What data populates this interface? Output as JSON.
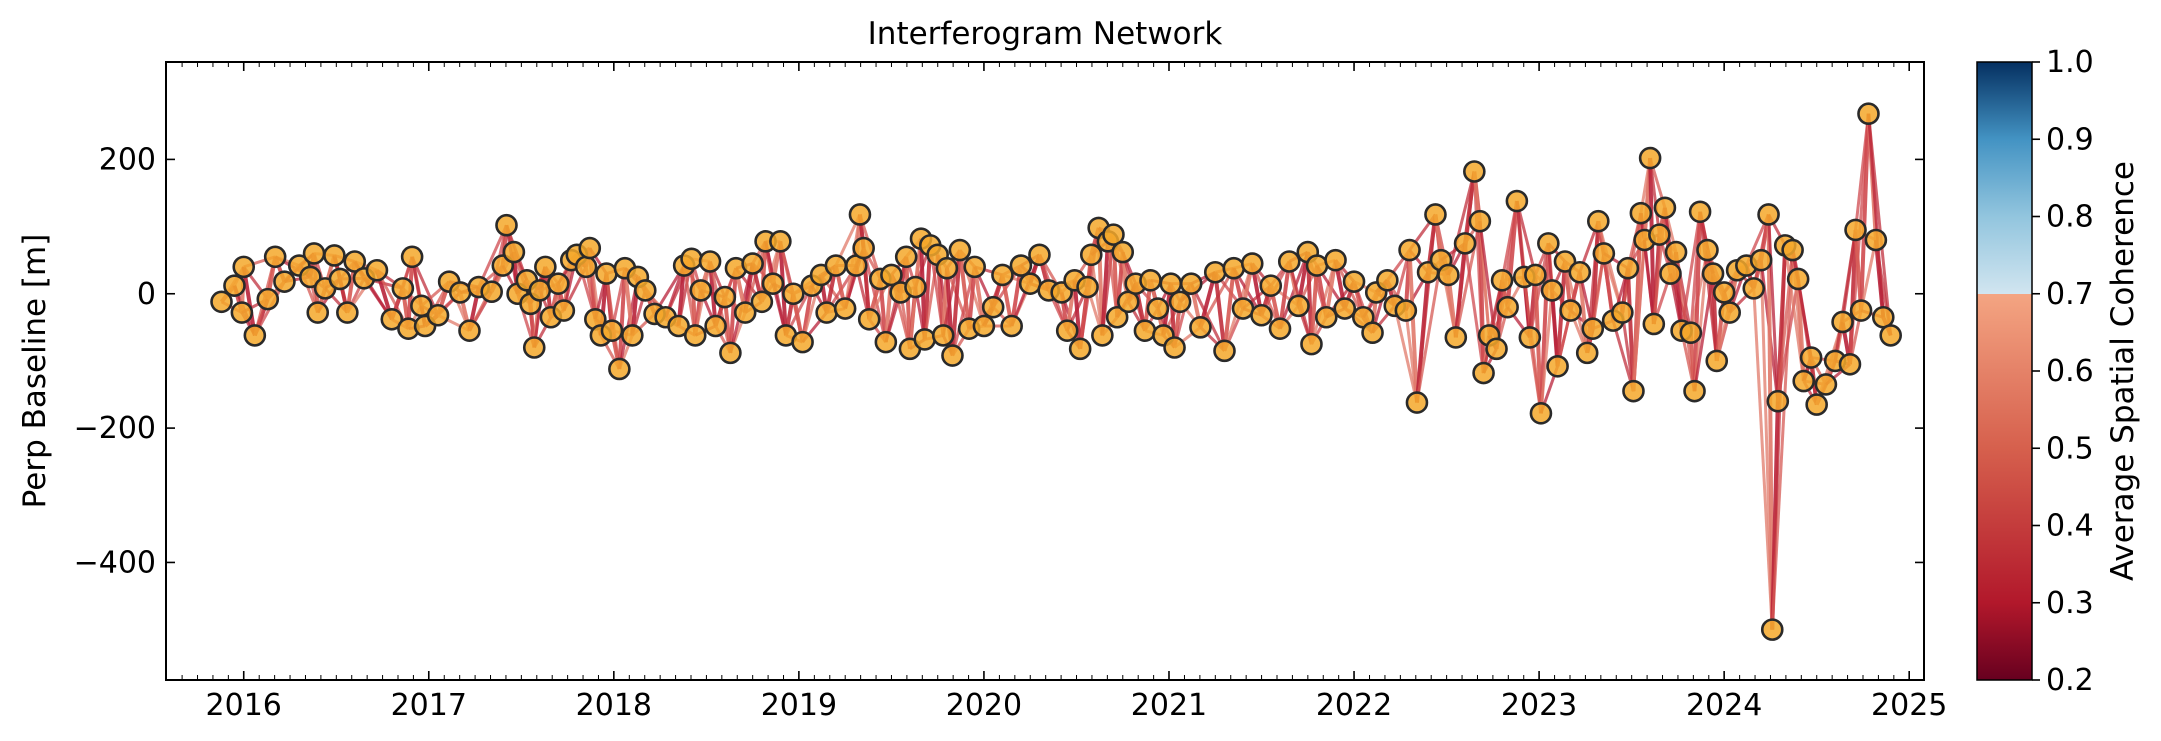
{
  "chart_data": {
    "type": "scatter",
    "title": "Interferogram Network",
    "ylabel": "Perp Baseline [m]",
    "xlabel": "",
    "xlim": [
      2015.58,
      2025.08
    ],
    "ylim": [
      -575,
      345
    ],
    "xticks": [
      2016,
      2017,
      2018,
      2019,
      2020,
      2021,
      2022,
      2023,
      2024,
      2025
    ],
    "xtick_labels": [
      "2016",
      "2017",
      "2018",
      "2019",
      "2020",
      "2021",
      "2022",
      "2023",
      "2024",
      "2025"
    ],
    "yticks": [
      200,
      0,
      -200,
      -400
    ],
    "ytick_labels": [
      "200",
      "0",
      "−200",
      "−400"
    ],
    "grid": false,
    "marker_color": "#f5a82a",
    "colorbar": {
      "label": "Average Spatial Coherence",
      "range": [
        0.2,
        1.0
      ],
      "ticks": [
        "0.2",
        "0.3",
        "0.4",
        "0.5",
        "0.6",
        "0.7",
        "0.8",
        "0.9",
        "1.0"
      ],
      "colormap": "RdBu",
      "used_range": [
        0.2,
        0.7
      ]
    },
    "acquisitions": [
      {
        "date": 2015.88,
        "bperp": -12
      },
      {
        "date": 2015.95,
        "bperp": 12
      },
      {
        "date": 2015.99,
        "bperp": -28
      },
      {
        "date": 2016.0,
        "bperp": 40
      },
      {
        "date": 2016.06,
        "bperp": -62
      },
      {
        "date": 2016.13,
        "bperp": -8
      },
      {
        "date": 2016.17,
        "bperp": 55
      },
      {
        "date": 2016.22,
        "bperp": 18
      },
      {
        "date": 2016.3,
        "bperp": 42
      },
      {
        "date": 2016.36,
        "bperp": 25
      },
      {
        "date": 2016.38,
        "bperp": 60
      },
      {
        "date": 2016.4,
        "bperp": -28
      },
      {
        "date": 2016.44,
        "bperp": 8
      },
      {
        "date": 2016.49,
        "bperp": 57
      },
      {
        "date": 2016.52,
        "bperp": 22
      },
      {
        "date": 2016.56,
        "bperp": -28
      },
      {
        "date": 2016.6,
        "bperp": 48
      },
      {
        "date": 2016.65,
        "bperp": 23
      },
      {
        "date": 2016.72,
        "bperp": 35
      },
      {
        "date": 2016.8,
        "bperp": -38
      },
      {
        "date": 2016.86,
        "bperp": 8
      },
      {
        "date": 2016.89,
        "bperp": -52
      },
      {
        "date": 2016.91,
        "bperp": 55
      },
      {
        "date": 2016.96,
        "bperp": -18
      },
      {
        "date": 2016.98,
        "bperp": -48
      },
      {
        "date": 2017.05,
        "bperp": -32
      },
      {
        "date": 2017.11,
        "bperp": 18
      },
      {
        "date": 2017.17,
        "bperp": 2
      },
      {
        "date": 2017.22,
        "bperp": -55
      },
      {
        "date": 2017.27,
        "bperp": 10
      },
      {
        "date": 2017.34,
        "bperp": 3
      },
      {
        "date": 2017.4,
        "bperp": 42
      },
      {
        "date": 2017.42,
        "bperp": 102
      },
      {
        "date": 2017.46,
        "bperp": 62
      },
      {
        "date": 2017.48,
        "bperp": 0
      },
      {
        "date": 2017.53,
        "bperp": 20
      },
      {
        "date": 2017.55,
        "bperp": -15
      },
      {
        "date": 2017.57,
        "bperp": -80
      },
      {
        "date": 2017.6,
        "bperp": 5
      },
      {
        "date": 2017.63,
        "bperp": 40
      },
      {
        "date": 2017.66,
        "bperp": -35
      },
      {
        "date": 2017.7,
        "bperp": 15
      },
      {
        "date": 2017.73,
        "bperp": -25
      },
      {
        "date": 2017.77,
        "bperp": 50
      },
      {
        "date": 2017.8,
        "bperp": 58
      },
      {
        "date": 2017.85,
        "bperp": 40
      },
      {
        "date": 2017.87,
        "bperp": 68
      },
      {
        "date": 2017.9,
        "bperp": -38
      },
      {
        "date": 2017.93,
        "bperp": -62
      },
      {
        "date": 2017.96,
        "bperp": 30
      },
      {
        "date": 2017.99,
        "bperp": -55
      },
      {
        "date": 2018.03,
        "bperp": -112
      },
      {
        "date": 2018.06,
        "bperp": 38
      },
      {
        "date": 2018.1,
        "bperp": -62
      },
      {
        "date": 2018.13,
        "bperp": 25
      },
      {
        "date": 2018.17,
        "bperp": 5
      },
      {
        "date": 2018.22,
        "bperp": -30
      },
      {
        "date": 2018.28,
        "bperp": -35
      },
      {
        "date": 2018.35,
        "bperp": -48
      },
      {
        "date": 2018.38,
        "bperp": 42
      },
      {
        "date": 2018.42,
        "bperp": 52
      },
      {
        "date": 2018.44,
        "bperp": -62
      },
      {
        "date": 2018.47,
        "bperp": 5
      },
      {
        "date": 2018.52,
        "bperp": 48
      },
      {
        "date": 2018.55,
        "bperp": -48
      },
      {
        "date": 2018.6,
        "bperp": -5
      },
      {
        "date": 2018.63,
        "bperp": -88
      },
      {
        "date": 2018.66,
        "bperp": 38
      },
      {
        "date": 2018.71,
        "bperp": -28
      },
      {
        "date": 2018.75,
        "bperp": 45
      },
      {
        "date": 2018.8,
        "bperp": -12
      },
      {
        "date": 2018.82,
        "bperp": 78
      },
      {
        "date": 2018.86,
        "bperp": 15
      },
      {
        "date": 2018.9,
        "bperp": 78
      },
      {
        "date": 2018.93,
        "bperp": -62
      },
      {
        "date": 2018.97,
        "bperp": 0
      },
      {
        "date": 2019.02,
        "bperp": -72
      },
      {
        "date": 2019.07,
        "bperp": 12
      },
      {
        "date": 2019.12,
        "bperp": 28
      },
      {
        "date": 2019.15,
        "bperp": -28
      },
      {
        "date": 2019.2,
        "bperp": 42
      },
      {
        "date": 2019.25,
        "bperp": -22
      },
      {
        "date": 2019.31,
        "bperp": 42
      },
      {
        "date": 2019.33,
        "bperp": 118
      },
      {
        "date": 2019.35,
        "bperp": 68
      },
      {
        "date": 2019.38,
        "bperp": -38
      },
      {
        "date": 2019.44,
        "bperp": 22
      },
      {
        "date": 2019.47,
        "bperp": -72
      },
      {
        "date": 2019.5,
        "bperp": 28
      },
      {
        "date": 2019.55,
        "bperp": 2
      },
      {
        "date": 2019.58,
        "bperp": 55
      },
      {
        "date": 2019.6,
        "bperp": -82
      },
      {
        "date": 2019.63,
        "bperp": 10
      },
      {
        "date": 2019.66,
        "bperp": 82
      },
      {
        "date": 2019.68,
        "bperp": -68
      },
      {
        "date": 2019.71,
        "bperp": 72
      },
      {
        "date": 2019.75,
        "bperp": 58
      },
      {
        "date": 2019.78,
        "bperp": -62
      },
      {
        "date": 2019.8,
        "bperp": 38
      },
      {
        "date": 2019.83,
        "bperp": -92
      },
      {
        "date": 2019.87,
        "bperp": 65
      },
      {
        "date": 2019.92,
        "bperp": -52
      },
      {
        "date": 2019.95,
        "bperp": 40
      },
      {
        "date": 2020.0,
        "bperp": -48
      },
      {
        "date": 2020.05,
        "bperp": -20
      },
      {
        "date": 2020.1,
        "bperp": 28
      },
      {
        "date": 2020.15,
        "bperp": -48
      },
      {
        "date": 2020.2,
        "bperp": 42
      },
      {
        "date": 2020.25,
        "bperp": 15
      },
      {
        "date": 2020.3,
        "bperp": 58
      },
      {
        "date": 2020.35,
        "bperp": 5
      },
      {
        "date": 2020.42,
        "bperp": 2
      },
      {
        "date": 2020.45,
        "bperp": -55
      },
      {
        "date": 2020.49,
        "bperp": 20
      },
      {
        "date": 2020.52,
        "bperp": -82
      },
      {
        "date": 2020.56,
        "bperp": 10
      },
      {
        "date": 2020.58,
        "bperp": 58
      },
      {
        "date": 2020.62,
        "bperp": 98
      },
      {
        "date": 2020.64,
        "bperp": -62
      },
      {
        "date": 2020.67,
        "bperp": 78
      },
      {
        "date": 2020.7,
        "bperp": 88
      },
      {
        "date": 2020.72,
        "bperp": -35
      },
      {
        "date": 2020.75,
        "bperp": 62
      },
      {
        "date": 2020.78,
        "bperp": -12
      },
      {
        "date": 2020.82,
        "bperp": 15
      },
      {
        "date": 2020.87,
        "bperp": -55
      },
      {
        "date": 2020.9,
        "bperp": 20
      },
      {
        "date": 2020.94,
        "bperp": -22
      },
      {
        "date": 2020.97,
        "bperp": -62
      },
      {
        "date": 2021.01,
        "bperp": 15
      },
      {
        "date": 2021.03,
        "bperp": -80
      },
      {
        "date": 2021.06,
        "bperp": -12
      },
      {
        "date": 2021.12,
        "bperp": 15
      },
      {
        "date": 2021.17,
        "bperp": -50
      },
      {
        "date": 2021.25,
        "bperp": 32
      },
      {
        "date": 2021.3,
        "bperp": -85
      },
      {
        "date": 2021.35,
        "bperp": 38
      },
      {
        "date": 2021.4,
        "bperp": -22
      },
      {
        "date": 2021.45,
        "bperp": 45
      },
      {
        "date": 2021.5,
        "bperp": -32
      },
      {
        "date": 2021.55,
        "bperp": 12
      },
      {
        "date": 2021.6,
        "bperp": -52
      },
      {
        "date": 2021.65,
        "bperp": 48
      },
      {
        "date": 2021.7,
        "bperp": -18
      },
      {
        "date": 2021.75,
        "bperp": 62
      },
      {
        "date": 2021.77,
        "bperp": -75
      },
      {
        "date": 2021.8,
        "bperp": 42
      },
      {
        "date": 2021.85,
        "bperp": -35
      },
      {
        "date": 2021.9,
        "bperp": 50
      },
      {
        "date": 2021.95,
        "bperp": -22
      },
      {
        "date": 2022.0,
        "bperp": 18
      },
      {
        "date": 2022.05,
        "bperp": -35
      },
      {
        "date": 2022.1,
        "bperp": -58
      },
      {
        "date": 2022.12,
        "bperp": 2
      },
      {
        "date": 2022.18,
        "bperp": 20
      },
      {
        "date": 2022.22,
        "bperp": -18
      },
      {
        "date": 2022.28,
        "bperp": -25
      },
      {
        "date": 2022.3,
        "bperp": 65
      },
      {
        "date": 2022.34,
        "bperp": -162
      },
      {
        "date": 2022.4,
        "bperp": 32
      },
      {
        "date": 2022.44,
        "bperp": 118
      },
      {
        "date": 2022.47,
        "bperp": 50
      },
      {
        "date": 2022.51,
        "bperp": 28
      },
      {
        "date": 2022.55,
        "bperp": -65
      },
      {
        "date": 2022.6,
        "bperp": 75
      },
      {
        "date": 2022.65,
        "bperp": 182
      },
      {
        "date": 2022.68,
        "bperp": 108
      },
      {
        "date": 2022.7,
        "bperp": -118
      },
      {
        "date": 2022.73,
        "bperp": -62
      },
      {
        "date": 2022.77,
        "bperp": -82
      },
      {
        "date": 2022.8,
        "bperp": 20
      },
      {
        "date": 2022.83,
        "bperp": -20
      },
      {
        "date": 2022.88,
        "bperp": 138
      },
      {
        "date": 2022.92,
        "bperp": 25
      },
      {
        "date": 2022.95,
        "bperp": -65
      },
      {
        "date": 2022.98,
        "bperp": 28
      },
      {
        "date": 2023.01,
        "bperp": -178
      },
      {
        "date": 2023.05,
        "bperp": 75
      },
      {
        "date": 2023.07,
        "bperp": 5
      },
      {
        "date": 2023.1,
        "bperp": -108
      },
      {
        "date": 2023.14,
        "bperp": 48
      },
      {
        "date": 2023.17,
        "bperp": -25
      },
      {
        "date": 2023.22,
        "bperp": 32
      },
      {
        "date": 2023.26,
        "bperp": -88
      },
      {
        "date": 2023.29,
        "bperp": -52
      },
      {
        "date": 2023.32,
        "bperp": 108
      },
      {
        "date": 2023.35,
        "bperp": 60
      },
      {
        "date": 2023.4,
        "bperp": -40
      },
      {
        "date": 2023.45,
        "bperp": -28
      },
      {
        "date": 2023.48,
        "bperp": 38
      },
      {
        "date": 2023.51,
        "bperp": -145
      },
      {
        "date": 2023.55,
        "bperp": 120
      },
      {
        "date": 2023.57,
        "bperp": 80
      },
      {
        "date": 2023.6,
        "bperp": 202
      },
      {
        "date": 2023.62,
        "bperp": -45
      },
      {
        "date": 2023.65,
        "bperp": 88
      },
      {
        "date": 2023.68,
        "bperp": 128
      },
      {
        "date": 2023.71,
        "bperp": 30
      },
      {
        "date": 2023.74,
        "bperp": 62
      },
      {
        "date": 2023.77,
        "bperp": -55
      },
      {
        "date": 2023.82,
        "bperp": -58
      },
      {
        "date": 2023.84,
        "bperp": -145
      },
      {
        "date": 2023.87,
        "bperp": 122
      },
      {
        "date": 2023.91,
        "bperp": 65
      },
      {
        "date": 2023.94,
        "bperp": 30
      },
      {
        "date": 2023.96,
        "bperp": -100
      },
      {
        "date": 2024.0,
        "bperp": 2
      },
      {
        "date": 2024.03,
        "bperp": -28
      },
      {
        "date": 2024.07,
        "bperp": 35
      },
      {
        "date": 2024.12,
        "bperp": 42
      },
      {
        "date": 2024.16,
        "bperp": 8
      },
      {
        "date": 2024.2,
        "bperp": 50
      },
      {
        "date": 2024.24,
        "bperp": 118
      },
      {
        "date": 2024.26,
        "bperp": -500
      },
      {
        "date": 2024.29,
        "bperp": -160
      },
      {
        "date": 2024.33,
        "bperp": 72
      },
      {
        "date": 2024.37,
        "bperp": 65
      },
      {
        "date": 2024.4,
        "bperp": 22
      },
      {
        "date": 2024.43,
        "bperp": -130
      },
      {
        "date": 2024.47,
        "bperp": -95
      },
      {
        "date": 2024.5,
        "bperp": -165
      },
      {
        "date": 2024.55,
        "bperp": -135
      },
      {
        "date": 2024.6,
        "bperp": -100
      },
      {
        "date": 2024.64,
        "bperp": -42
      },
      {
        "date": 2024.68,
        "bperp": -105
      },
      {
        "date": 2024.71,
        "bperp": 95
      },
      {
        "date": 2024.74,
        "bperp": -25
      },
      {
        "date": 2024.78,
        "bperp": 268
      },
      {
        "date": 2024.82,
        "bperp": 80
      },
      {
        "date": 2024.86,
        "bperp": -35
      },
      {
        "date": 2024.9,
        "bperp": -62
      }
    ]
  }
}
